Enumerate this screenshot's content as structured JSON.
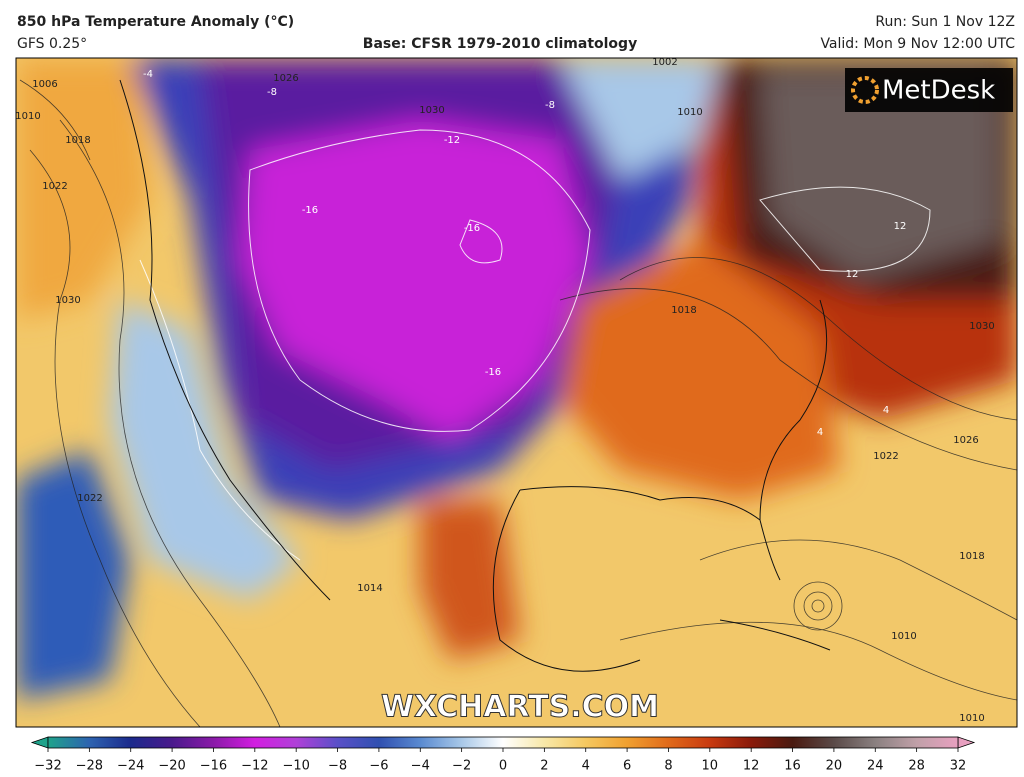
{
  "header": {
    "title": "850 hPa Temperature Anomaly (°C)",
    "model": "GFS 0.25°",
    "base": "Base: CFSR 1979-2010 climatology",
    "run": "Run: Sun 1 Nov 12Z",
    "valid": "Valid: Mon 9 Nov 12:00 UTC"
  },
  "logo": "MetDesk",
  "watermark": "WXCHARTS.COM",
  "map": {
    "labels": [
      "1006",
      "1010",
      "1018",
      "1022",
      "1030",
      "1022",
      "-4",
      "-8",
      "1026",
      "1002",
      "-8",
      "1010",
      "-12",
      "-16",
      "-16",
      "1030",
      "1018",
      "-16",
      "12",
      "12",
      "1030",
      "1026",
      "1022",
      "1018",
      "1014",
      "1010",
      "1010",
      "4",
      "4"
    ]
  },
  "colorbar": {
    "ticks": [
      {
        "value": -32,
        "label": "−32"
      },
      {
        "value": -28,
        "label": "−28"
      },
      {
        "value": -24,
        "label": "−24"
      },
      {
        "value": -20,
        "label": "−20"
      },
      {
        "value": -16,
        "label": "−16"
      },
      {
        "value": -12,
        "label": "−12"
      },
      {
        "value": -10,
        "label": "−10"
      },
      {
        "value": -8,
        "label": "−8"
      },
      {
        "value": -6,
        "label": "−6"
      },
      {
        "value": -4,
        "label": "−4"
      },
      {
        "value": -2,
        "label": "−2"
      },
      0,
      2,
      4,
      6,
      8,
      10,
      12,
      16,
      20,
      24,
      28,
      32
    ],
    "colors": [
      "#1fa38b",
      "#2d63b0",
      "#1b2a8c",
      "#4a1a8c",
      "#8a1aa8",
      "#d21ee0",
      "#b040d8",
      "#5a50c8",
      "#3050b0",
      "#5a8ad0",
      "#a8c8e8",
      "#ffffff",
      "#f8e8a8",
      "#f5c860",
      "#f0a030",
      "#e06a1a",
      "#c83a10",
      "#8a1a0a",
      "#4a1a10",
      "#5a4a48",
      "#8a8080",
      "#c0a0a8",
      "#e8a0c0"
    ]
  }
}
